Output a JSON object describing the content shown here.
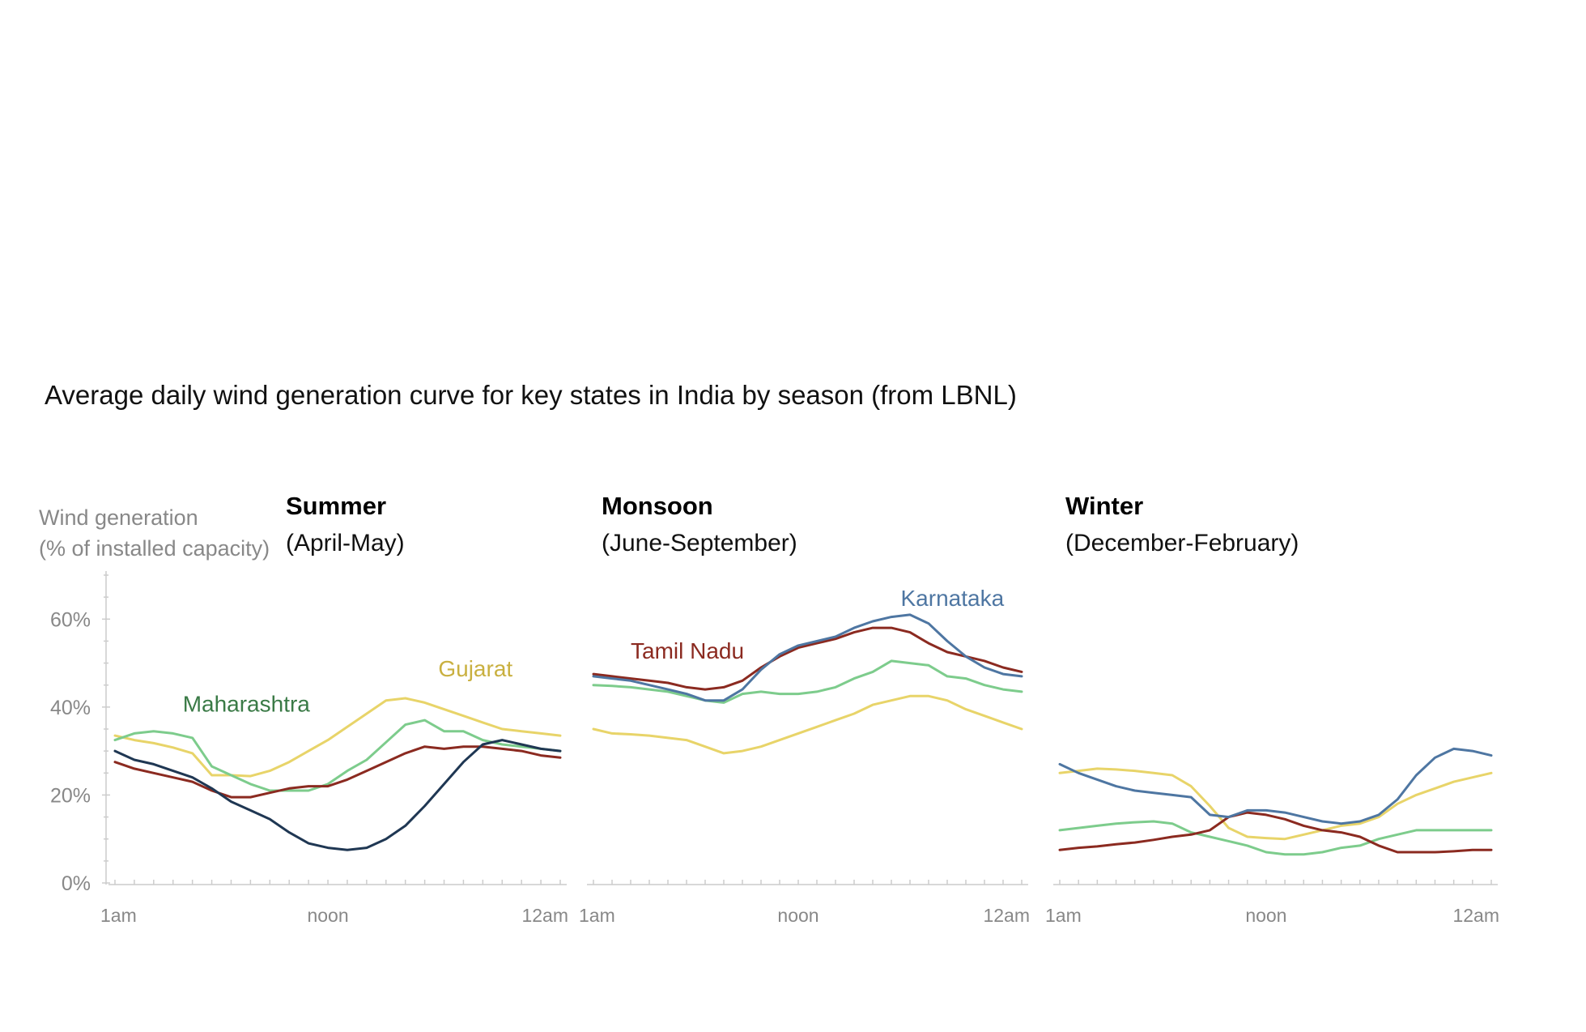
{
  "chart_data": {
    "type": "line",
    "title": "Average daily wind generation curve for key states in India by season (from LBNL)",
    "ylabel_line1": "Wind generation",
    "ylabel_line2": "(% of installed capacity)",
    "yticks": [
      "0%",
      "20%",
      "40%",
      "60%"
    ],
    "ytick_values": [
      0,
      20,
      40,
      60
    ],
    "ylim": [
      0,
      70
    ],
    "x_hours": [
      1,
      2,
      3,
      4,
      5,
      6,
      7,
      8,
      9,
      10,
      11,
      12,
      13,
      14,
      15,
      16,
      17,
      18,
      19,
      20,
      21,
      22,
      23,
      24
    ],
    "xlim": [
      1,
      24
    ],
    "xtick_labels": [
      "1am",
      "noon",
      "12am"
    ],
    "xtick_values": [
      1,
      12,
      24
    ],
    "grid": false,
    "colors": {
      "Gujarat": "#e8d469",
      "Tamil Nadu": "#8b2a20",
      "Karnataka": "#4e76a2",
      "Maharashtra": "#7dcc8c",
      "Maharashtra_label": "#3a7a46",
      "Gujarat_label": "#c9b040",
      "Tamil Nadu_label": "#8b2a20",
      "Karnataka_label": "#4e76a2",
      "Summer_dark": "#1f3753"
    },
    "panels": [
      {
        "title": "Summer",
        "subtitle": "(April-May)",
        "labels": [
          {
            "text": "Maharashtra",
            "series": "Maharashtra",
            "hour": 4.5,
            "value": 39
          },
          {
            "text": "Gujarat",
            "series": "Gujarat",
            "hour": 17.7,
            "value": 47
          }
        ],
        "series": [
          {
            "name": "Gujarat",
            "values": [
              33.5,
              32.5,
              31.8,
              30.8,
              29.5,
              24.5,
              24.5,
              24.3,
              25.5,
              27.5,
              30,
              32.5,
              35.5,
              38.5,
              41.5,
              42,
              41,
              39.5,
              38,
              36.5,
              35,
              34.5,
              34,
              33.5
            ]
          },
          {
            "name": "Maharashtra",
            "values": [
              32.5,
              34,
              34.5,
              34,
              33,
              26.5,
              24.5,
              22.5,
              21,
              21,
              21,
              22.5,
              25.5,
              28,
              32,
              36,
              37,
              34.5,
              34.5,
              32.5,
              31.5,
              31,
              30.5,
              30
            ]
          },
          {
            "name": "Tamil Nadu",
            "values": [
              27.5,
              26,
              25,
              24,
              23,
              21,
              19.5,
              19.5,
              20.5,
              21.5,
              22,
              22,
              23.5,
              25.5,
              27.5,
              29.5,
              31,
              30.5,
              31,
              31,
              30.5,
              30,
              29,
              28.5
            ]
          },
          {
            "name": "Karnataka",
            "color_key": "Summer_dark",
            "values": [
              30,
              28,
              27,
              25.5,
              24,
              21.5,
              18.5,
              16.5,
              14.5,
              11.5,
              9,
              8,
              7.5,
              8,
              10,
              13,
              17.5,
              22.5,
              27.5,
              31.5,
              32.5,
              31.5,
              30.5,
              30
            ]
          }
        ]
      },
      {
        "title": "Monsoon",
        "subtitle": "(June-September)",
        "labels": [
          {
            "text": "Tamil Nadu",
            "series": "Tamil Nadu",
            "hour": 3,
            "value": 51
          },
          {
            "text": "Karnataka",
            "series": "Karnataka",
            "hour": 17.5,
            "value": 63
          }
        ],
        "series": [
          {
            "name": "Gujarat",
            "values": [
              35,
              34,
              33.8,
              33.5,
              33,
              32.5,
              31,
              29.5,
              30,
              31,
              32.5,
              34,
              35.5,
              37,
              38.5,
              40.5,
              41.5,
              42.5,
              42.5,
              41.5,
              39.5,
              38,
              36.5,
              35
            ]
          },
          {
            "name": "Maharashtra",
            "values": [
              45,
              44.8,
              44.5,
              44,
              43.5,
              42.5,
              41.5,
              41,
              43,
              43.5,
              43,
              43,
              43.5,
              44.5,
              46.5,
              48,
              50.5,
              50,
              49.5,
              47,
              46.5,
              45,
              44,
              43.5
            ]
          },
          {
            "name": "Tamil Nadu",
            "values": [
              47.5,
              47,
              46.5,
              46,
              45.5,
              44.5,
              44,
              44.5,
              46,
              49,
              51.5,
              53.5,
              54.5,
              55.5,
              57,
              58,
              58,
              57,
              54.5,
              52.5,
              51.5,
              50.5,
              49,
              48
            ]
          },
          {
            "name": "Karnataka",
            "values": [
              47,
              46.5,
              46,
              45,
              44,
              43,
              41.5,
              41.5,
              44,
              48.5,
              52,
              54,
              55,
              56,
              58,
              59.5,
              60.5,
              61,
              59,
              55,
              51.5,
              49,
              47.5,
              47
            ]
          }
        ]
      },
      {
        "title": "Winter",
        "subtitle": "(December-February)",
        "labels": [],
        "series": [
          {
            "name": "Gujarat",
            "values": [
              25,
              25.5,
              26,
              25.8,
              25.5,
              25,
              24.5,
              22,
              17.5,
              12.5,
              10.5,
              10.2,
              10,
              11,
              12,
              13,
              13.5,
              15,
              18,
              20,
              21.5,
              23,
              24,
              25
            ]
          },
          {
            "name": "Maharashtra",
            "values": [
              12,
              12.5,
              13,
              13.5,
              13.8,
              14,
              13.5,
              11.5,
              10.5,
              9.5,
              8.5,
              7,
              6.5,
              6.5,
              7,
              8,
              8.5,
              10,
              11,
              12,
              12,
              12,
              12,
              12
            ]
          },
          {
            "name": "Tamil Nadu",
            "values": [
              7.5,
              8,
              8.3,
              8.8,
              9.2,
              9.8,
              10.5,
              11,
              12,
              15,
              16,
              15.5,
              14.5,
              13,
              12,
              11.5,
              10.5,
              8.5,
              7,
              7,
              7,
              7.2,
              7.5,
              7.5
            ]
          },
          {
            "name": "Karnataka",
            "values": [
              27,
              25,
              23.5,
              22,
              21,
              20.5,
              20,
              19.5,
              15.5,
              15,
              16.5,
              16.5,
              16,
              15,
              14,
              13.5,
              14,
              15.5,
              19,
              24.5,
              28.5,
              30.5,
              30,
              29
            ]
          }
        ]
      }
    ]
  }
}
